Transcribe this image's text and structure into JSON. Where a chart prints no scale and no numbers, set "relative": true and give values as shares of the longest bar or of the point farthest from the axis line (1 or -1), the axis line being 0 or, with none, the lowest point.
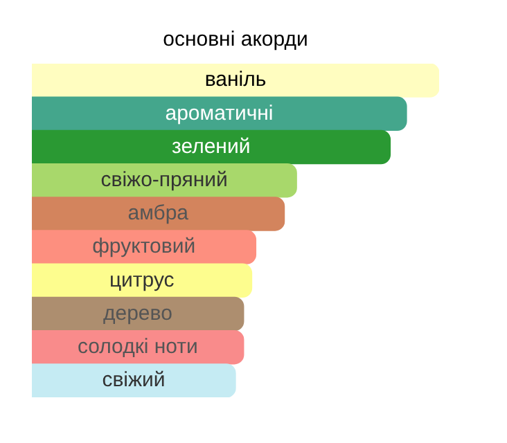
{
  "chart_data": {
    "type": "bar",
    "orientation": "horizontal",
    "relative": true,
    "title": "основні акорди",
    "categories": [
      "ваніль",
      "ароматичні",
      "зелений",
      "свіжо-пряний",
      "амбра",
      "фруктовий",
      "цитрус",
      "дерево",
      "солодкі ноти",
      "свіжий"
    ],
    "values": [
      1,
      0.92,
      0.88,
      0.65,
      0.62,
      0.55,
      0.54,
      0.52,
      0.52,
      0.5
    ],
    "colors": [
      "#fffdc0",
      "#44a68c",
      "#2a9933",
      "#a8d86b",
      "#d3845d",
      "#fd8f7f",
      "#fdfd8e",
      "#ad8e6f",
      "#f98b8b",
      "#c5ebf3"
    ],
    "legend": false
  }
}
